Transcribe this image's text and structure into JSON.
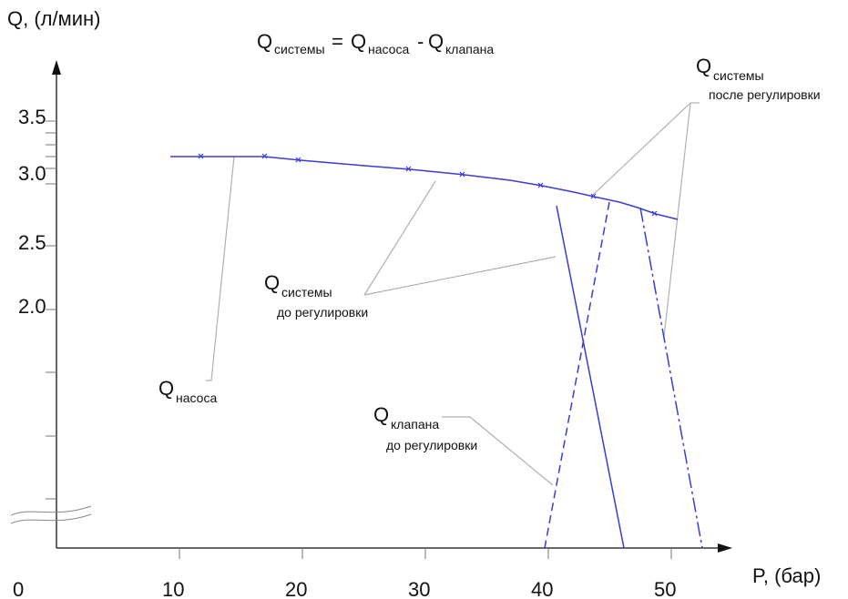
{
  "axes": {
    "y_title": "Q, (л/мин)",
    "x_title": "P, (бар)",
    "origin": "0",
    "y_ticks": [
      "3.5",
      "3.0",
      "2.5",
      "2.0"
    ],
    "x_ticks": [
      "10",
      "20",
      "30",
      "40",
      "50"
    ]
  },
  "formula": {
    "lhs": "Q",
    "lhs_sub": "системы",
    "eq": "=",
    "a": "Q",
    "a_sub": "насоса",
    "minus": "-",
    "b": "Q",
    "b_sub": "клапана"
  },
  "labels": {
    "pump_q": "Q",
    "pump_sub": "насоса",
    "sys_before_q": "Q",
    "sys_before_sub": "системы",
    "sys_before_note": "до регулировки",
    "sys_after_q": "Q",
    "sys_after_sub": "системы",
    "sys_after_note": "после регулировки",
    "valve_q": "Q",
    "valve_sub": "клапана",
    "valve_note": "до регулировки"
  },
  "colors": {
    "curve": "#3b3bd6",
    "axis": "#111111",
    "leader": "#b0b0b0"
  }
}
